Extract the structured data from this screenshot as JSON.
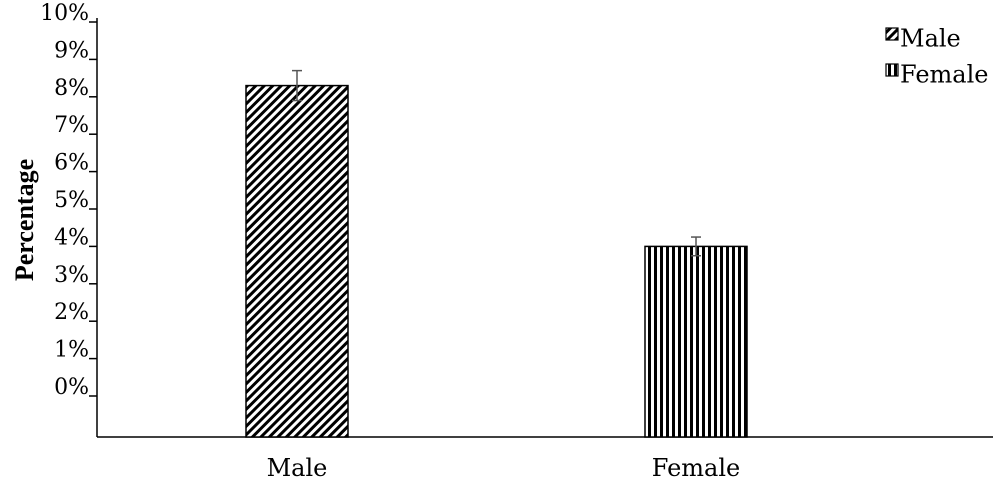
{
  "chart_data": {
    "type": "bar",
    "title": "",
    "xlabel": "",
    "ylabel": "Percentage",
    "ylim": [
      0,
      10
    ],
    "y_tick_labels": [
      "0%",
      "1%",
      "2%",
      "3%",
      "4%",
      "5%",
      "6%",
      "7%",
      "8%",
      "9%",
      "10%"
    ],
    "categories": [
      "Male",
      "Female"
    ],
    "values": [
      8.3,
      4.0
    ],
    "error": [
      0.4,
      0.25
    ],
    "grid": false,
    "legend": {
      "position": "top-right",
      "entries": [
        "Male",
        "Female"
      ]
    },
    "colors": {
      "bar_fill": "#000000",
      "bar_background": "#ffffff",
      "axis": "#000000"
    },
    "patterns": [
      "diagonal-hatch",
      "vertical-stripes"
    ]
  }
}
